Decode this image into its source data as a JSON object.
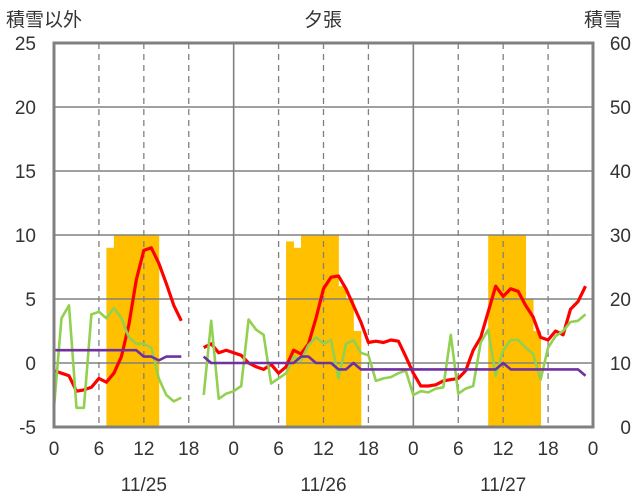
{
  "chart_data": {
    "type": "line",
    "title": "夕張",
    "left_axis_label": "積雪以外",
    "right_axis_label": "積雪",
    "left_ylim": [
      -5,
      25
    ],
    "left_ticks": [
      "25",
      "20",
      "15",
      "10",
      "5",
      "0",
      "-5"
    ],
    "right_ylim": [
      0,
      60
    ],
    "right_ticks": [
      "60",
      "50",
      "40",
      "30",
      "20",
      "10",
      "0"
    ],
    "x_range_hours": [
      0,
      72
    ],
    "x_tick_labels": [
      "0",
      "6",
      "12",
      "18",
      "0",
      "6",
      "12",
      "18",
      "0",
      "6",
      "12",
      "18",
      "0"
    ],
    "day_labels": [
      "11/25",
      "11/26",
      "11/27"
    ],
    "grid": true,
    "snow_depth_bars": {
      "color": "#FFC000",
      "x": [
        7.5,
        8.5,
        9.5,
        10.5,
        11.5,
        12.5,
        13.5,
        31.5,
        32.5,
        33.5,
        34.5,
        35.5,
        36.5,
        37.5,
        38.5,
        39.5,
        40.5,
        58.5,
        59.5,
        60.5,
        61.5,
        62.5,
        63.5,
        64.5
      ],
      "values": [
        28,
        30,
        30,
        30,
        30,
        30,
        30,
        29,
        28,
        30,
        30,
        30,
        30,
        30,
        22,
        20,
        15,
        30,
        30,
        30,
        30,
        30,
        20,
        15
      ]
    },
    "series": [
      {
        "color": "#FF0000",
        "x": [
          0,
          1,
          2,
          3,
          4,
          5,
          6,
          7,
          8,
          9,
          10,
          11,
          12,
          13,
          14,
          15,
          16,
          17,
          null,
          20,
          21,
          22,
          23,
          24,
          25,
          26,
          27,
          28,
          29,
          30,
          31,
          32,
          33,
          34,
          35,
          36,
          37,
          38,
          39,
          40,
          41,
          42,
          43,
          44,
          45,
          46,
          47,
          48,
          49,
          50,
          51,
          52,
          53,
          54,
          55,
          56,
          57,
          58,
          59,
          60,
          61,
          62,
          63,
          64,
          65,
          66,
          67,
          68,
          69,
          70,
          71
        ],
        "values": [
          -0.6,
          -0.8,
          -1.0,
          -2.2,
          -2.1,
          -1.9,
          -1.2,
          -1.5,
          -0.8,
          0.5,
          3,
          6.5,
          8.8,
          9,
          7.8,
          6.2,
          4.5,
          3.3,
          null,
          1.2,
          1.5,
          0.8,
          1.0,
          0.8,
          0.6,
          0.0,
          -0.3,
          -0.5,
          -0.1,
          -0.8,
          -0.3,
          1.0,
          0.7,
          1.5,
          3.5,
          5.8,
          6.7,
          6.8,
          5.8,
          4.5,
          3.2,
          1.6,
          1.7,
          1.6,
          1.8,
          1.7,
          0.5,
          -0.8,
          -1.8,
          -1.8,
          -1.7,
          -1.4,
          -1.3,
          -1.2,
          -0.6,
          1.0,
          2.0,
          4.0,
          6.0,
          5.2,
          5.8,
          5.6,
          4.5,
          3.6,
          2.0,
          1.8,
          2.5,
          2.2,
          4.2,
          4.8,
          6.0
        ]
      },
      {
        "color": "#92D050",
        "x": [
          0,
          1,
          2,
          3,
          4,
          5,
          6,
          7,
          8,
          9,
          10,
          11,
          12,
          13,
          14,
          15,
          16,
          17,
          null,
          20,
          21,
          22,
          23,
          24,
          25,
          26,
          27,
          28,
          29,
          30,
          31,
          32,
          33,
          34,
          35,
          36,
          37,
          38,
          39,
          40,
          41,
          42,
          43,
          44,
          45,
          46,
          47,
          48,
          49,
          50,
          51,
          52,
          53,
          54,
          55,
          56,
          57,
          58,
          59,
          60,
          61,
          62,
          63,
          64,
          65,
          66,
          67,
          68,
          69,
          70,
          71
        ],
        "values": [
          -3.5,
          3.5,
          4.5,
          -3.5,
          -3.5,
          3.8,
          4.0,
          3.5,
          4.3,
          3.5,
          2.0,
          1.5,
          1.5,
          1.2,
          -1.2,
          -2.5,
          -3.0,
          -2.7,
          null,
          -2.5,
          3.3,
          -2.8,
          -2.4,
          -2.2,
          -1.8,
          3.4,
          2.6,
          2.2,
          -1.6,
          -1.2,
          -0.8,
          0.5,
          0.2,
          1.4,
          2.0,
          1.5,
          1.8,
          -1.2,
          1.5,
          1.8,
          0.8,
          0.6,
          -1.4,
          -1.2,
          -1.1,
          -0.8,
          -0.6,
          -2.5,
          -2.2,
          -2.3,
          -2.0,
          -1.9,
          2.2,
          -2.4,
          -2.0,
          -1.8,
          1.6,
          2.6,
          -1.0,
          1.0,
          1.8,
          1.8,
          1.2,
          0.7,
          -1.3,
          1.2,
          2.1,
          2.5,
          3.2,
          3.3,
          3.8
        ]
      },
      {
        "color": "#7030A0",
        "x": [
          0,
          1,
          2,
          3,
          4,
          5,
          6,
          7,
          8,
          9,
          10,
          11,
          12,
          13,
          14,
          15,
          16,
          17,
          null,
          20,
          21,
          22,
          23,
          24,
          25,
          26,
          27,
          28,
          29,
          30,
          31,
          32,
          33,
          34,
          35,
          36,
          37,
          38,
          39,
          40,
          41,
          42,
          43,
          44,
          45,
          46,
          47,
          48,
          49,
          50,
          51,
          52,
          53,
          54,
          55,
          56,
          57,
          58,
          59,
          60,
          61,
          62,
          63,
          64,
          65,
          66,
          67,
          68,
          69,
          70,
          71
        ],
        "values": [
          1.0,
          1.0,
          1.0,
          1.0,
          1.0,
          1.0,
          1.0,
          1.0,
          1.0,
          1.0,
          1.0,
          1.0,
          0.5,
          0.5,
          0.2,
          0.5,
          0.5,
          0.5,
          null,
          0.5,
          0.0,
          0.0,
          0.0,
          0.0,
          0.0,
          0.0,
          0.0,
          0.0,
          0.0,
          0.0,
          0.0,
          0.0,
          0.5,
          0.5,
          0.0,
          0.0,
          0.0,
          -0.5,
          -0.5,
          0.0,
          -0.5,
          -0.5,
          -0.5,
          -0.5,
          -0.5,
          -0.5,
          -0.5,
          -0.5,
          -0.5,
          -0.5,
          -0.5,
          -0.5,
          -0.5,
          -0.5,
          -0.5,
          -0.5,
          -0.5,
          -0.5,
          -0.5,
          0.0,
          -0.5,
          -0.5,
          -0.5,
          -0.5,
          -0.5,
          -0.5,
          -0.5,
          -0.5,
          -0.5,
          -0.5,
          -1.0
        ]
      }
    ]
  }
}
